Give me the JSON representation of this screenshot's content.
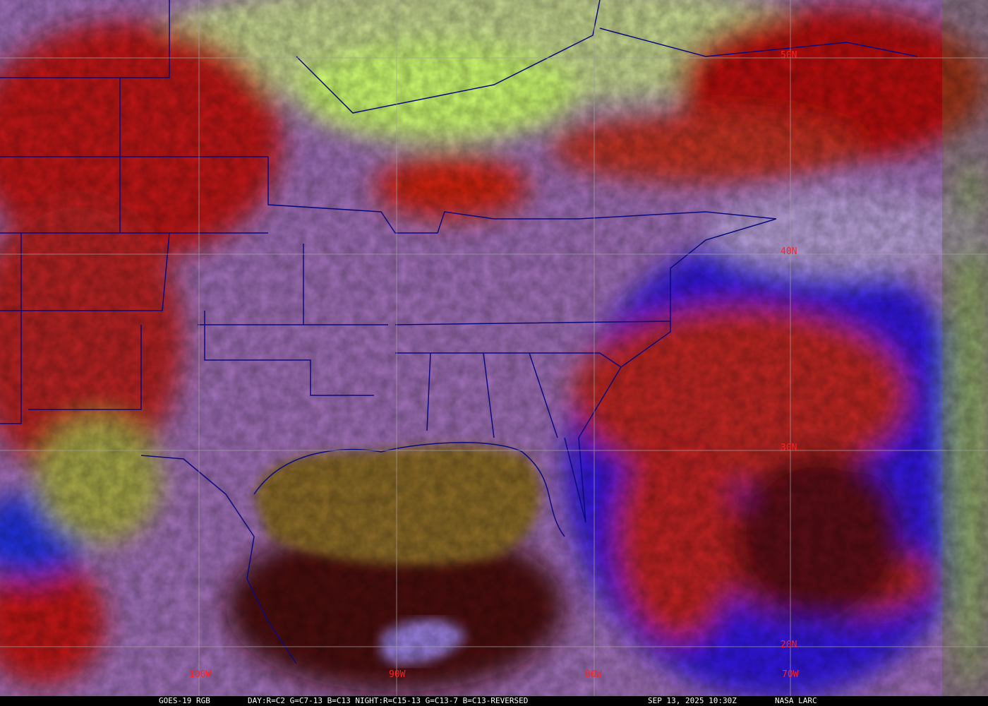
{
  "image": {
    "product": "GOES-19 RGB",
    "recipe": "DAY:R=C2 G=C7-13 B=C13 NIGHT:R=C15-13 G=C13-7 B=C13-REVERSED",
    "timestamp": "SEP 13, 2025 10:30Z",
    "credit": "NASA LARC"
  },
  "grid": {
    "longitude_labels": [
      "100W",
      "90W",
      "80W",
      "70W"
    ],
    "latitude_labels": [
      "50N",
      "40N",
      "30N",
      "20N"
    ],
    "label_color": "#ff2020",
    "line_color": "#a0a0a0",
    "border_color": "#0a0a80"
  },
  "colors": {
    "clear_land": "#b080c8",
    "gulf": "#7a5a20",
    "ocean_night": "#4a0a10",
    "cold_cloud": "#c01010",
    "low_cloud": "#c8ff60",
    "deep_ocean": "#2020ff"
  }
}
